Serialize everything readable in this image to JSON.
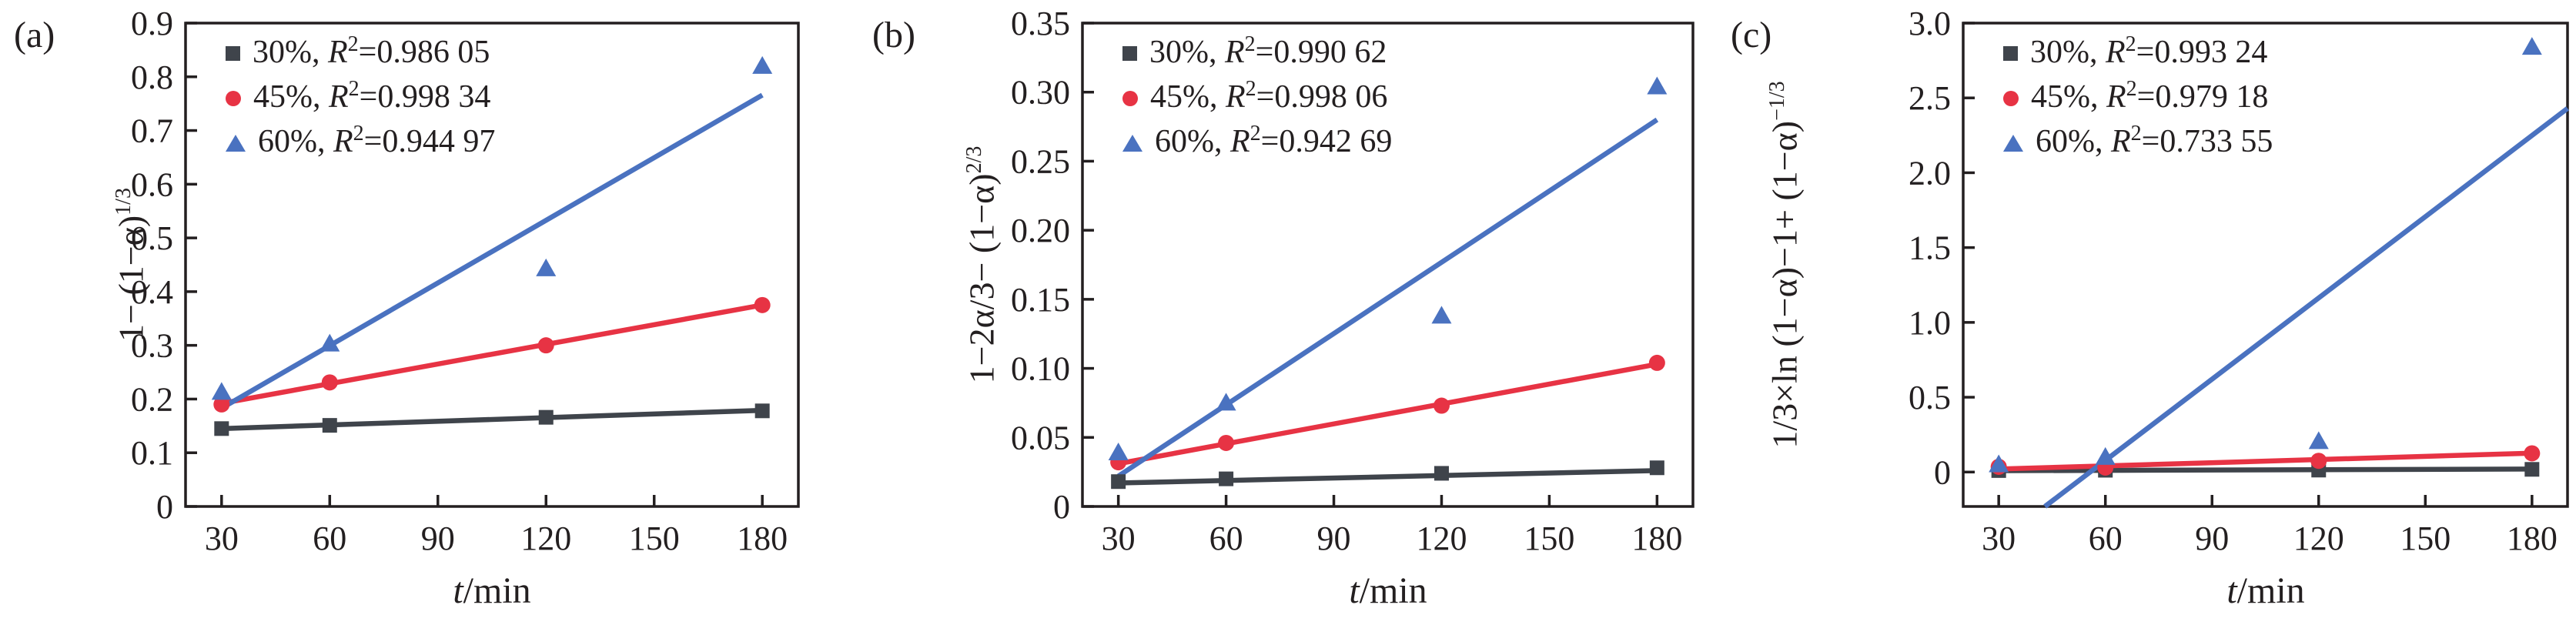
{
  "ui": {
    "comma": ", ",
    "r_symbol": "R",
    "sup_two": "2",
    "equals": "="
  },
  "colors": {
    "ink": "#231f20",
    "series_30": "#3f444b",
    "series_45": "#e73344",
    "series_60": "#4a72c0"
  },
  "chart_data": [
    {
      "type": "scatter",
      "panel": "(a)",
      "xlabel": {
        "var": "t",
        "unit": "/min"
      },
      "ylabel": {
        "base": "1− (1−α)",
        "sup": "1/3"
      },
      "x_domain": [
        20,
        190
      ],
      "y_domain": [
        0,
        0.9
      ],
      "x_ticks": [
        30,
        60,
        90,
        120,
        150,
        180
      ],
      "y_ticks": [
        {
          "v": 0,
          "label": "0"
        },
        {
          "v": 0.1,
          "label": "0.1"
        },
        {
          "v": 0.2,
          "label": "0.2"
        },
        {
          "v": 0.3,
          "label": "0.3"
        },
        {
          "v": 0.4,
          "label": "0.4"
        },
        {
          "v": 0.5,
          "label": "0.5"
        },
        {
          "v": 0.6,
          "label": "0.6"
        },
        {
          "v": 0.7,
          "label": "0.7"
        },
        {
          "v": 0.8,
          "label": "0.8"
        },
        {
          "v": 0.9,
          "label": "0.9"
        }
      ],
      "series": [
        {
          "name": "30%",
          "r2": "0.986 05",
          "color": "#3f444b",
          "marker": "square",
          "x": [
            30,
            60,
            120,
            180
          ],
          "y": [
            0.145,
            0.151,
            0.166,
            0.178
          ],
          "fit": {
            "x1": 30,
            "y1": 0.145,
            "x2": 180,
            "y2": 0.179
          }
        },
        {
          "name": "45%",
          "r2": "0.998 34",
          "color": "#e73344",
          "marker": "circle",
          "x": [
            30,
            60,
            120,
            180
          ],
          "y": [
            0.19,
            0.231,
            0.3,
            0.375
          ],
          "fit": {
            "x1": 30,
            "y1": 0.192,
            "x2": 180,
            "y2": 0.375
          }
        },
        {
          "name": "60%",
          "r2": "0.944 97",
          "color": "#4a72c0",
          "marker": "triangle",
          "x": [
            30,
            60,
            120,
            180
          ],
          "y": [
            0.213,
            0.303,
            0.443,
            0.82
          ],
          "fit": {
            "x1": 30,
            "y1": 0.183,
            "x2": 180,
            "y2": 0.766
          }
        }
      ]
    },
    {
      "type": "scatter",
      "panel": "(b)",
      "xlabel": {
        "var": "t",
        "unit": "/min"
      },
      "ylabel": {
        "base": "1−2α/3− (1−α)",
        "sup": "2/3"
      },
      "x_domain": [
        20,
        190
      ],
      "y_domain": [
        0,
        0.35
      ],
      "x_ticks": [
        30,
        60,
        90,
        120,
        150,
        180
      ],
      "y_ticks": [
        {
          "v": 0,
          "label": "0"
        },
        {
          "v": 0.05,
          "label": "0.05"
        },
        {
          "v": 0.1,
          "label": "0.10"
        },
        {
          "v": 0.15,
          "label": "0.15"
        },
        {
          "v": 0.2,
          "label": "0.20"
        },
        {
          "v": 0.25,
          "label": "0.25"
        },
        {
          "v": 0.3,
          "label": "0.30"
        },
        {
          "v": 0.35,
          "label": "0.35"
        }
      ],
      "series": [
        {
          "name": "30%",
          "r2": "0.990 62",
          "color": "#3f444b",
          "marker": "square",
          "x": [
            30,
            60,
            120,
            180
          ],
          "y": [
            0.018,
            0.02,
            0.024,
            0.028
          ],
          "fit": {
            "x1": 30,
            "y1": 0.017,
            "x2": 180,
            "y2": 0.026
          }
        },
        {
          "name": "45%",
          "r2": "0.998 06",
          "color": "#e73344",
          "marker": "circle",
          "x": [
            30,
            60,
            120,
            180
          ],
          "y": [
            0.032,
            0.046,
            0.073,
            0.104
          ],
          "fit": {
            "x1": 30,
            "y1": 0.031,
            "x2": 180,
            "y2": 0.103
          }
        },
        {
          "name": "60%",
          "r2": "0.942 69",
          "color": "#4a72c0",
          "marker": "triangle",
          "x": [
            30,
            60,
            120,
            180
          ],
          "y": [
            0.039,
            0.075,
            0.138,
            0.304
          ],
          "fit": {
            "x1": 30,
            "y1": 0.022,
            "x2": 180,
            "y2": 0.28
          }
        }
      ]
    },
    {
      "type": "scatter",
      "panel": "(c)",
      "xlabel": {
        "var": "t",
        "unit": "/min"
      },
      "ylabel": {
        "base": "1/3×ln (1−α)−1+ (1−α)",
        "sup": "−1/3"
      },
      "x_domain": [
        20,
        190
      ],
      "y_domain": [
        -0.23,
        3.0
      ],
      "x_ticks": [
        30,
        60,
        90,
        120,
        150,
        180
      ],
      "y_ticks": [
        {
          "v": 0,
          "label": "0"
        },
        {
          "v": 0.5,
          "label": "0.5"
        },
        {
          "v": 1.0,
          "label": "1.0"
        },
        {
          "v": 1.5,
          "label": "1.5"
        },
        {
          "v": 2.0,
          "label": "2.0"
        },
        {
          "v": 2.5,
          "label": "2.5"
        },
        {
          "v": 3.0,
          "label": "3.0"
        }
      ],
      "series": [
        {
          "name": "30%",
          "r2": "0.993 24",
          "color": "#3f444b",
          "marker": "square",
          "x": [
            30,
            60,
            120,
            180
          ],
          "y": [
            0.01,
            0.012,
            0.013,
            0.018
          ],
          "fit": {
            "x1": 30,
            "y1": 0.009,
            "x2": 180,
            "y2": 0.02
          }
        },
        {
          "name": "45%",
          "r2": "0.979 18",
          "color": "#e73344",
          "marker": "circle",
          "x": [
            30,
            60,
            120,
            180
          ],
          "y": [
            0.035,
            0.03,
            0.075,
            0.125
          ],
          "fit": {
            "x1": 30,
            "y1": 0.02,
            "x2": 180,
            "y2": 0.126
          }
        },
        {
          "name": "60%",
          "r2": "0.733 55",
          "color": "#4a72c0",
          "marker": "triangle",
          "x": [
            30,
            60,
            120,
            180
          ],
          "y": [
            0.05,
            0.1,
            0.205,
            2.84
          ],
          "fit": {
            "x1": 43,
            "y1": -0.23,
            "x2": 190,
            "y2": 2.43
          }
        }
      ]
    }
  ]
}
